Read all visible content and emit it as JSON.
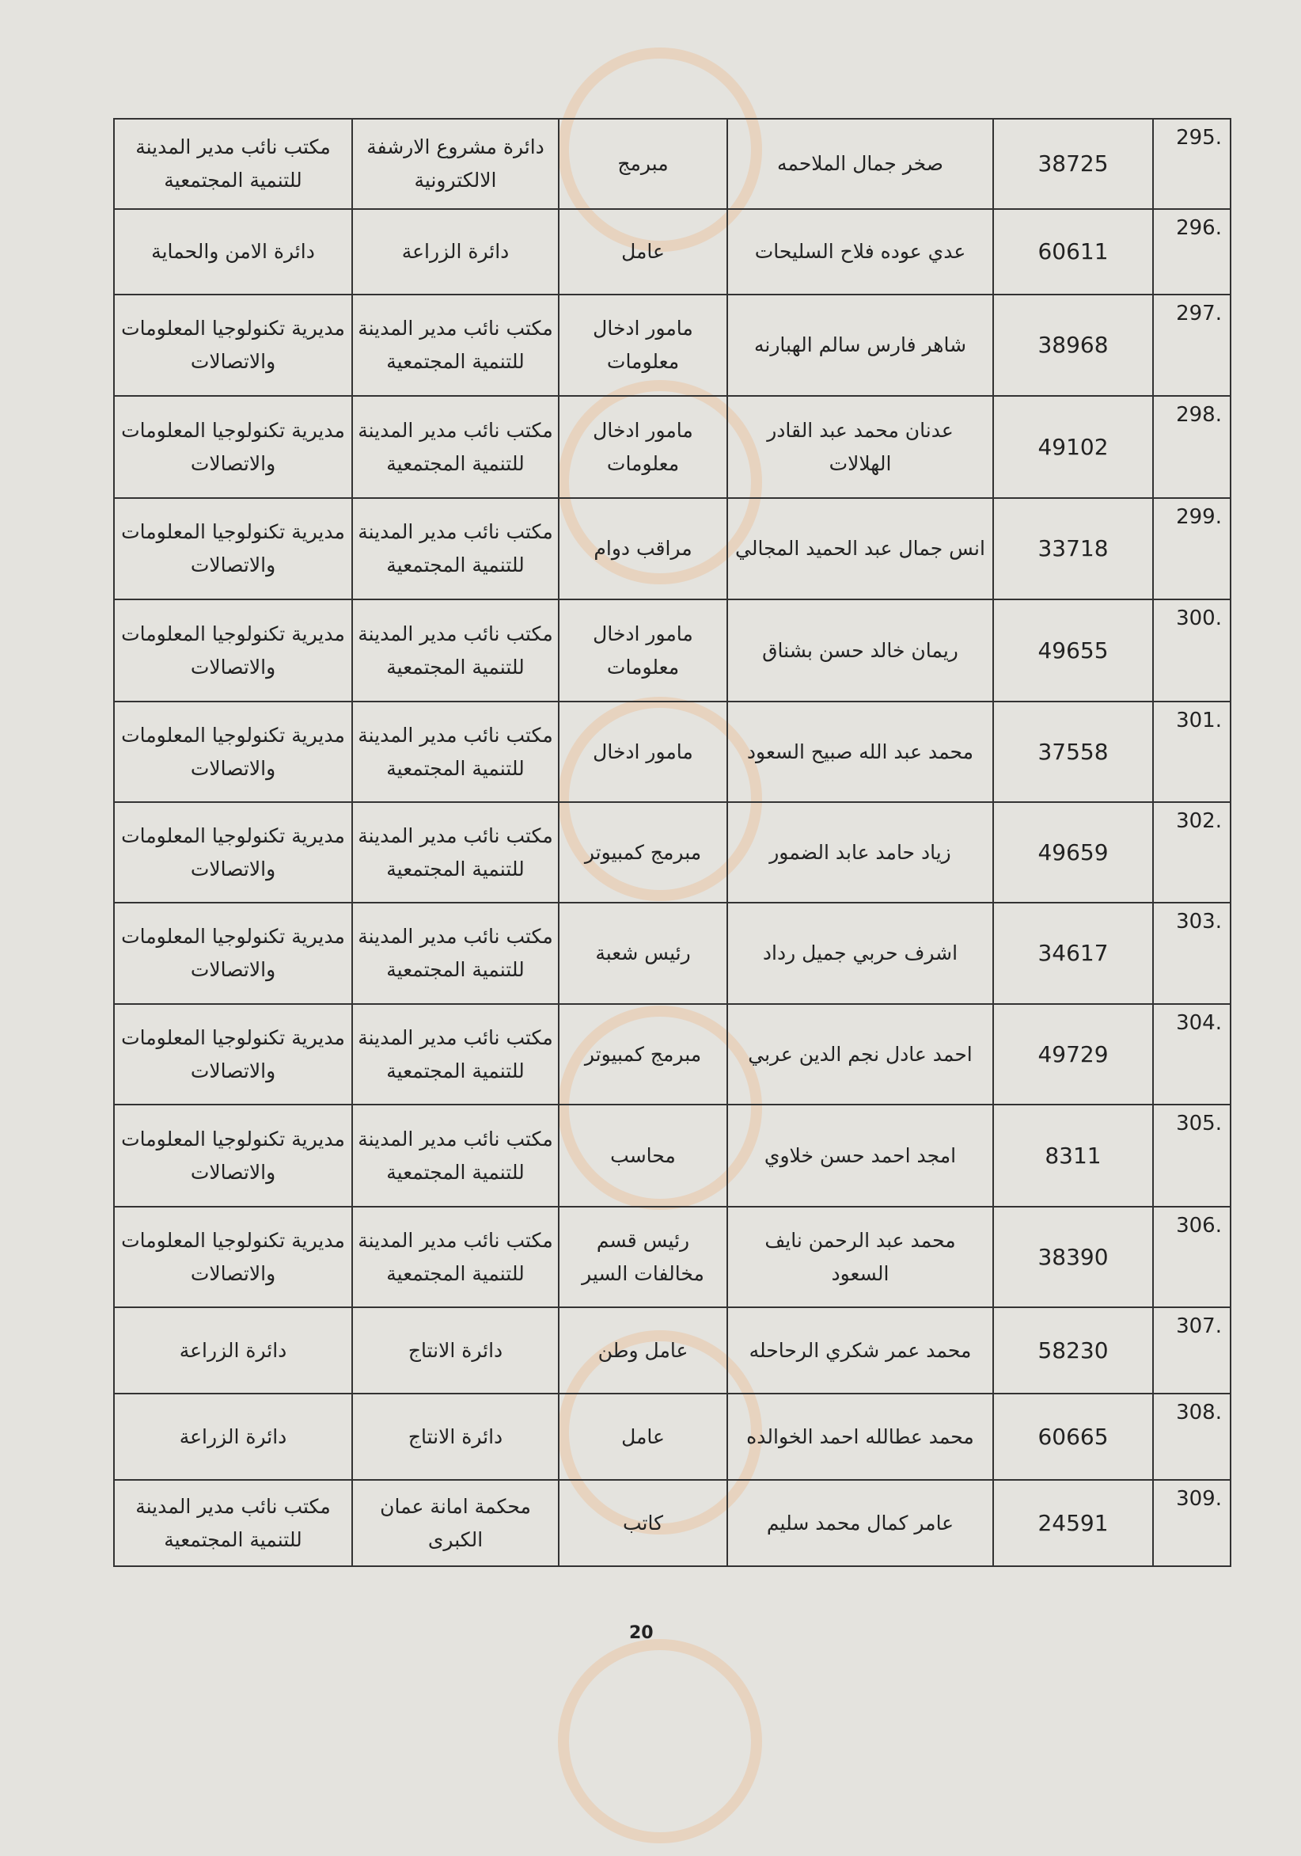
{
  "rows": [
    {
      "index": ".295",
      "id": "38725",
      "name": "صخر جمال الملاحمه",
      "job": "مبرمج",
      "dept": "دائرة مشروع الارشفة الالكترونية",
      "directorate": "مكتب نائب مدير المدينة للتنمية المجتمعية"
    },
    {
      "index": ".296",
      "id": "60611",
      "name": "عدي عوده فلاح السليحات",
      "job": "عامل",
      "dept": "دائرة الزراعة",
      "directorate": "دائرة الامن والحماية"
    },
    {
      "index": ".297",
      "id": "38968",
      "name": "شاهر فارس سالم الهبارنه",
      "job": "مامور ادخال معلومات",
      "dept": "مكتب نائب مدير المدينة للتنمية المجتمعية",
      "directorate": "مديرية تكنولوجيا المعلومات والاتصالات"
    },
    {
      "index": ".298",
      "id": "49102",
      "name": "عدنان محمد عبد القادر الهلالات",
      "job": "مامور ادخال معلومات",
      "dept": "مكتب نائب مدير المدينة للتنمية المجتمعية",
      "directorate": "مديرية تكنولوجيا المعلومات والاتصالات"
    },
    {
      "index": ".299",
      "id": "33718",
      "name": "انس جمال عبد الحميد المجالي",
      "job": "مراقب دوام",
      "dept": "مكتب نائب مدير المدينة للتنمية المجتمعية",
      "directorate": "مديرية تكنولوجيا المعلومات والاتصالات"
    },
    {
      "index": ".300",
      "id": "49655",
      "name": "ريمان خالد حسن بشناق",
      "job": "مامور ادخال معلومات",
      "dept": "مكتب نائب مدير المدينة للتنمية المجتمعية",
      "directorate": "مديرية تكنولوجيا المعلومات والاتصالات"
    },
    {
      "index": ".301",
      "id": "37558",
      "name": "محمد عبد الله صبيح السعود",
      "job": "مامور ادخال",
      "dept": "مكتب نائب مدير المدينة للتنمية المجتمعية",
      "directorate": "مديرية تكنولوجيا المعلومات والاتصالات"
    },
    {
      "index": ".302",
      "id": "49659",
      "name": "زياد حامد عابد الضمور",
      "job": "مبرمج كمبيوتر",
      "dept": "مكتب نائب مدير المدينة للتنمية المجتمعية",
      "directorate": "مديرية تكنولوجيا المعلومات والاتصالات"
    },
    {
      "index": ".303",
      "id": "34617",
      "name": "اشرف حربي جميل رداد",
      "job": "رئيس شعبة",
      "dept": "مكتب نائب مدير المدينة للتنمية المجتمعية",
      "directorate": "مديرية تكنولوجيا المعلومات والاتصالات"
    },
    {
      "index": ".304",
      "id": "49729",
      "name": "احمد عادل نجم الدين عربي",
      "job": "مبرمج كمبيوتر",
      "dept": "مكتب نائب مدير المدينة للتنمية المجتمعية",
      "directorate": "مديرية تكنولوجيا المعلومات والاتصالات"
    },
    {
      "index": ".305",
      "id": "8311",
      "name": "امجد احمد حسن خلاوي",
      "job": "محاسب",
      "dept": "مكتب نائب مدير المدينة للتنمية المجتمعية",
      "directorate": "مديرية تكنولوجيا المعلومات والاتصالات"
    },
    {
      "index": ".306",
      "id": "38390",
      "name": "محمد عبد الرحمن نايف السعود",
      "job": "رئيس قسم مخالفات السير",
      "dept": "مكتب نائب مدير المدينة للتنمية المجتمعية",
      "directorate": "مديرية تكنولوجيا المعلومات والاتصالات"
    },
    {
      "index": ".307",
      "id": "58230",
      "name": "محمد عمر شكري الرحاحله",
      "job": "عامل وطن",
      "dept": "دائرة الانتاج",
      "directorate": "دائرة الزراعة"
    },
    {
      "index": ".308",
      "id": "60665",
      "name": "محمد عطالله احمد الخوالده",
      "job": "عامل",
      "dept": "دائرة الانتاج",
      "directorate": "دائرة الزراعة"
    },
    {
      "index": ".309",
      "id": "24591",
      "name": "عامر كمال محمد سليم",
      "job": "كاتب",
      "dept": "محكمة امانة عمان الكبرى",
      "directorate": "مكتب نائب مدير المدينة للتنمية المجتمعية"
    }
  ],
  "page_number": "20"
}
